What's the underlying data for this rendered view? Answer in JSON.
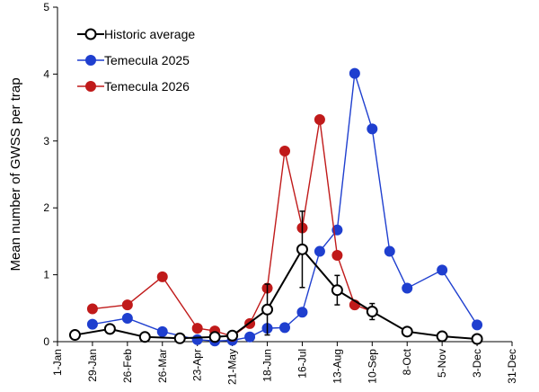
{
  "chart_data": {
    "type": "line",
    "title": "",
    "xlabel": "",
    "ylabel": "Mean number of GWSS per trap",
    "ylim": [
      0,
      5
    ],
    "yticks": [
      0,
      1,
      2,
      3,
      4,
      5
    ],
    "xlim": [
      1,
      365
    ],
    "xticks": [
      {
        "day": 1,
        "label": "1-Jan"
      },
      {
        "day": 29,
        "label": "29-Jan"
      },
      {
        "day": 57,
        "label": "26-Feb"
      },
      {
        "day": 85,
        "label": "26-Mar"
      },
      {
        "day": 113,
        "label": "23-Apr"
      },
      {
        "day": 141,
        "label": "21-May"
      },
      {
        "day": 169,
        "label": "18-Jun"
      },
      {
        "day": 197,
        "label": "16-Jul"
      },
      {
        "day": 225,
        "label": "13-Aug"
      },
      {
        "day": 253,
        "label": "10-Sep"
      },
      {
        "day": 281,
        "label": "8-Oct"
      },
      {
        "day": 309,
        "label": "5-Nov"
      },
      {
        "day": 337,
        "label": "3-Dec"
      },
      {
        "day": 365,
        "label": "31-Dec"
      }
    ],
    "legend_position": "top-left",
    "grid": false,
    "series": [
      {
        "name": "Historic average",
        "color": "#000000",
        "marker": "open-circle",
        "points": [
          {
            "x": 15,
            "y": 0.1
          },
          {
            "x": 43,
            "y": 0.19
          },
          {
            "x": 71,
            "y": 0.07
          },
          {
            "x": 99,
            "y": 0.05
          },
          {
            "x": 127,
            "y": 0.07
          },
          {
            "x": 141,
            "y": 0.09
          },
          {
            "x": 169,
            "y": 0.48,
            "err": 0.38
          },
          {
            "x": 197,
            "y": 1.38,
            "err": 0.57
          },
          {
            "x": 225,
            "y": 0.77,
            "err": 0.22
          },
          {
            "x": 253,
            "y": 0.45,
            "err": 0.12
          },
          {
            "x": 281,
            "y": 0.15
          },
          {
            "x": 309,
            "y": 0.08
          },
          {
            "x": 337,
            "y": 0.04
          }
        ]
      },
      {
        "name": "Temecula 2025",
        "color": "#1f3fcf",
        "marker": "filled-circle",
        "points": [
          {
            "x": 29,
            "y": 0.26
          },
          {
            "x": 57,
            "y": 0.35
          },
          {
            "x": 85,
            "y": 0.15
          },
          {
            "x": 113,
            "y": 0.03
          },
          {
            "x": 127,
            "y": 0.01
          },
          {
            "x": 141,
            "y": 0.02
          },
          {
            "x": 155,
            "y": 0.07
          },
          {
            "x": 169,
            "y": 0.2
          },
          {
            "x": 183,
            "y": 0.21
          },
          {
            "x": 197,
            "y": 0.44
          },
          {
            "x": 211,
            "y": 1.35
          },
          {
            "x": 225,
            "y": 1.67
          },
          {
            "x": 239,
            "y": 4.01
          },
          {
            "x": 253,
            "y": 3.18
          },
          {
            "x": 267,
            "y": 1.35
          },
          {
            "x": 281,
            "y": 0.8
          },
          {
            "x": 309,
            "y": 1.07
          },
          {
            "x": 337,
            "y": 0.25
          }
        ]
      },
      {
        "name": "Temecula 2026",
        "color": "#c01a1a",
        "marker": "filled-circle",
        "points": [
          {
            "x": 29,
            "y": 0.49
          },
          {
            "x": 57,
            "y": 0.55
          },
          {
            "x": 85,
            "y": 0.97
          },
          {
            "x": 113,
            "y": 0.2
          },
          {
            "x": 127,
            "y": 0.16
          },
          {
            "x": 141,
            "y": 0.08
          },
          {
            "x": 155,
            "y": 0.27
          },
          {
            "x": 169,
            "y": 0.8
          },
          {
            "x": 183,
            "y": 2.85
          },
          {
            "x": 197,
            "y": 1.7
          },
          {
            "x": 211,
            "y": 3.32
          },
          {
            "x": 225,
            "y": 1.29
          },
          {
            "x": 239,
            "y": 0.55
          },
          {
            "x": 253,
            "y": 0.45
          }
        ]
      }
    ]
  }
}
